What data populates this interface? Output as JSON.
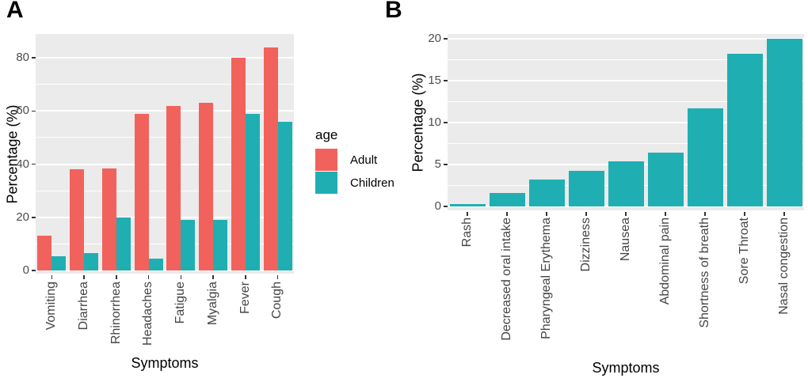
{
  "figure": {
    "panel_letters": {
      "a": "A",
      "b": "B"
    }
  },
  "colors": {
    "adult": "#F2625C",
    "children": "#1FAFB2",
    "plot_background": "#EBEBEB",
    "gridline": "#FFFFFF",
    "tick_label_text": "#4D4D4D",
    "axis_title_text": "#000000"
  },
  "chart_data": [
    {
      "panel": "A",
      "type": "bar",
      "title": "",
      "xlabel": "Symptoms",
      "ylabel": "Percentage (%)",
      "ylim": [
        0,
        88
      ],
      "yticks": [
        0,
        20,
        40,
        60,
        80
      ],
      "yticks_minor": [
        10,
        30,
        50,
        70
      ],
      "grid": true,
      "legend_title": "age",
      "legend_position": "right",
      "categories": [
        "Vomiting",
        "Diarrhea",
        "Rhinorrhea",
        "Headaches",
        "Fatigue",
        "Myalgia",
        "Fever",
        "Cough"
      ],
      "series": [
        {
          "name": "Adult",
          "color": "#F2625C",
          "values": [
            13,
            38,
            38.5,
            59,
            62,
            63,
            80,
            84
          ]
        },
        {
          "name": "Children",
          "color": "#1FAFB2",
          "values": [
            5.5,
            6.5,
            20,
            4.5,
            19,
            19,
            59,
            56
          ]
        }
      ]
    },
    {
      "panel": "B",
      "type": "bar",
      "title": "",
      "xlabel": "Symptoms",
      "ylabel": "Percentage (%)",
      "ylim": [
        0,
        21
      ],
      "yticks": [
        0,
        5,
        10,
        15,
        20
      ],
      "yticks_minor": [
        2.5,
        7.5,
        12.5,
        17.5
      ],
      "grid": true,
      "bar_color": "#1FAFB2",
      "categories": [
        "Rash",
        "Decreased oral intake",
        "Pharyngeal Erythema",
        "Dizziness",
        "Nausea",
        "Abdominal pain",
        "Shortness of breath",
        "Sore Throat",
        "Nasal congestion"
      ],
      "values": [
        0.3,
        1.6,
        3.2,
        4.2,
        5.4,
        6.4,
        11.7,
        18.2,
        20
      ]
    }
  ]
}
